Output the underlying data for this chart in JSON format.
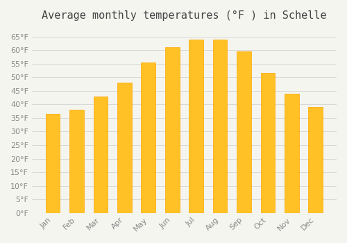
{
  "title": "Average monthly temperatures (°F ) in Schelle",
  "months": [
    "Jan",
    "Feb",
    "Mar",
    "Apr",
    "May",
    "Jun",
    "Jul",
    "Aug",
    "Sep",
    "Oct",
    "Nov",
    "Dec"
  ],
  "values": [
    36.5,
    38.0,
    43.0,
    48.0,
    55.5,
    61.0,
    64.0,
    64.0,
    59.5,
    51.5,
    44.0,
    39.0
  ],
  "bar_color": "#FFC125",
  "bar_edge_color": "#FFA500",
  "background_color": "#F5F5F0",
  "grid_color": "#CCCCCC",
  "text_color": "#888888",
  "ylim": [
    0,
    68
  ],
  "yticks": [
    0,
    5,
    10,
    15,
    20,
    25,
    30,
    35,
    40,
    45,
    50,
    55,
    60,
    65
  ],
  "title_fontsize": 11,
  "tick_fontsize": 8
}
